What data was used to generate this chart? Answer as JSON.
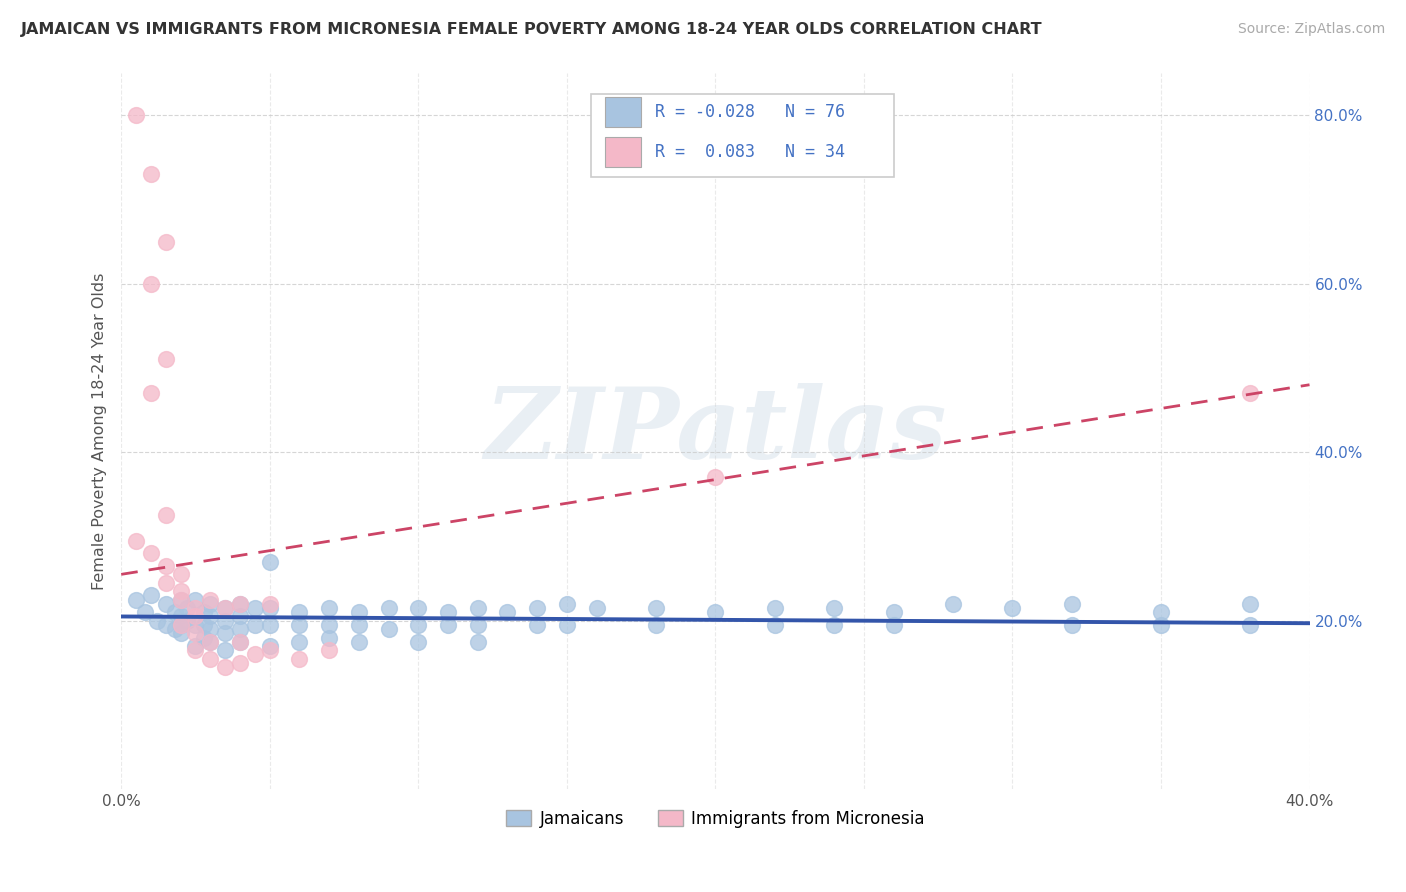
{
  "title": "JAMAICAN VS IMMIGRANTS FROM MICRONESIA FEMALE POVERTY AMONG 18-24 YEAR OLDS CORRELATION CHART",
  "source": "Source: ZipAtlas.com",
  "ylabel": "Female Poverty Among 18-24 Year Olds",
  "xlim": [
    0.0,
    0.4
  ],
  "ylim": [
    0.0,
    0.85
  ],
  "yticks": [
    0.2,
    0.4,
    0.6,
    0.8
  ],
  "ytick_labels": [
    "20.0%",
    "40.0%",
    "60.0%",
    "80.0%"
  ],
  "xticks": [
    0.0,
    0.05,
    0.1,
    0.15,
    0.2,
    0.25,
    0.3,
    0.35,
    0.4
  ],
  "xtick_labels": [
    "0.0%",
    "",
    "",
    "",
    "",
    "",
    "",
    "",
    "40.0%"
  ],
  "color_jamaican": "#a8c4e0",
  "color_micronesia": "#f4b8c8",
  "color_line_jamaican": "#3355aa",
  "color_line_micronesia": "#cc4466",
  "watermark": "ZIPatlas",
  "j_line": [
    0.205,
    0.197
  ],
  "m_line": [
    0.255,
    0.48
  ],
  "jamaican_scatter": [
    [
      0.005,
      0.225
    ],
    [
      0.008,
      0.21
    ],
    [
      0.01,
      0.23
    ],
    [
      0.012,
      0.2
    ],
    [
      0.015,
      0.22
    ],
    [
      0.015,
      0.195
    ],
    [
      0.018,
      0.21
    ],
    [
      0.018,
      0.19
    ],
    [
      0.02,
      0.225
    ],
    [
      0.02,
      0.205
    ],
    [
      0.02,
      0.195
    ],
    [
      0.02,
      0.185
    ],
    [
      0.022,
      0.215
    ],
    [
      0.022,
      0.2
    ],
    [
      0.025,
      0.225
    ],
    [
      0.025,
      0.195
    ],
    [
      0.025,
      0.17
    ],
    [
      0.028,
      0.21
    ],
    [
      0.028,
      0.195
    ],
    [
      0.028,
      0.18
    ],
    [
      0.03,
      0.22
    ],
    [
      0.03,
      0.205
    ],
    [
      0.03,
      0.19
    ],
    [
      0.03,
      0.175
    ],
    [
      0.035,
      0.215
    ],
    [
      0.035,
      0.2
    ],
    [
      0.035,
      0.185
    ],
    [
      0.035,
      0.165
    ],
    [
      0.04,
      0.22
    ],
    [
      0.04,
      0.205
    ],
    [
      0.04,
      0.19
    ],
    [
      0.04,
      0.175
    ],
    [
      0.045,
      0.215
    ],
    [
      0.045,
      0.195
    ],
    [
      0.05,
      0.27
    ],
    [
      0.05,
      0.215
    ],
    [
      0.05,
      0.195
    ],
    [
      0.05,
      0.17
    ],
    [
      0.06,
      0.21
    ],
    [
      0.06,
      0.195
    ],
    [
      0.06,
      0.175
    ],
    [
      0.07,
      0.215
    ],
    [
      0.07,
      0.195
    ],
    [
      0.07,
      0.18
    ],
    [
      0.08,
      0.21
    ],
    [
      0.08,
      0.195
    ],
    [
      0.08,
      0.175
    ],
    [
      0.09,
      0.215
    ],
    [
      0.09,
      0.19
    ],
    [
      0.1,
      0.215
    ],
    [
      0.1,
      0.195
    ],
    [
      0.1,
      0.175
    ],
    [
      0.11,
      0.21
    ],
    [
      0.11,
      0.195
    ],
    [
      0.12,
      0.215
    ],
    [
      0.12,
      0.195
    ],
    [
      0.12,
      0.175
    ],
    [
      0.13,
      0.21
    ],
    [
      0.14,
      0.215
    ],
    [
      0.14,
      0.195
    ],
    [
      0.15,
      0.22
    ],
    [
      0.15,
      0.195
    ],
    [
      0.16,
      0.215
    ],
    [
      0.18,
      0.215
    ],
    [
      0.18,
      0.195
    ],
    [
      0.2,
      0.21
    ],
    [
      0.22,
      0.215
    ],
    [
      0.22,
      0.195
    ],
    [
      0.24,
      0.215
    ],
    [
      0.24,
      0.195
    ],
    [
      0.26,
      0.21
    ],
    [
      0.26,
      0.195
    ],
    [
      0.28,
      0.22
    ],
    [
      0.3,
      0.215
    ],
    [
      0.32,
      0.22
    ],
    [
      0.32,
      0.195
    ],
    [
      0.35,
      0.21
    ],
    [
      0.35,
      0.195
    ],
    [
      0.38,
      0.22
    ],
    [
      0.38,
      0.195
    ]
  ],
  "micronesia_scatter": [
    [
      0.005,
      0.8
    ],
    [
      0.01,
      0.73
    ],
    [
      0.015,
      0.65
    ],
    [
      0.01,
      0.6
    ],
    [
      0.015,
      0.51
    ],
    [
      0.01,
      0.47
    ],
    [
      0.015,
      0.325
    ],
    [
      0.005,
      0.295
    ],
    [
      0.01,
      0.28
    ],
    [
      0.015,
      0.265
    ],
    [
      0.02,
      0.255
    ],
    [
      0.015,
      0.245
    ],
    [
      0.02,
      0.235
    ],
    [
      0.02,
      0.225
    ],
    [
      0.025,
      0.215
    ],
    [
      0.025,
      0.205
    ],
    [
      0.02,
      0.195
    ],
    [
      0.025,
      0.185
    ],
    [
      0.03,
      0.175
    ],
    [
      0.03,
      0.225
    ],
    [
      0.035,
      0.215
    ],
    [
      0.025,
      0.165
    ],
    [
      0.03,
      0.155
    ],
    [
      0.035,
      0.145
    ],
    [
      0.04,
      0.22
    ],
    [
      0.04,
      0.175
    ],
    [
      0.04,
      0.15
    ],
    [
      0.045,
      0.16
    ],
    [
      0.05,
      0.22
    ],
    [
      0.05,
      0.165
    ],
    [
      0.06,
      0.155
    ],
    [
      0.07,
      0.165
    ],
    [
      0.38,
      0.47
    ],
    [
      0.2,
      0.37
    ]
  ]
}
